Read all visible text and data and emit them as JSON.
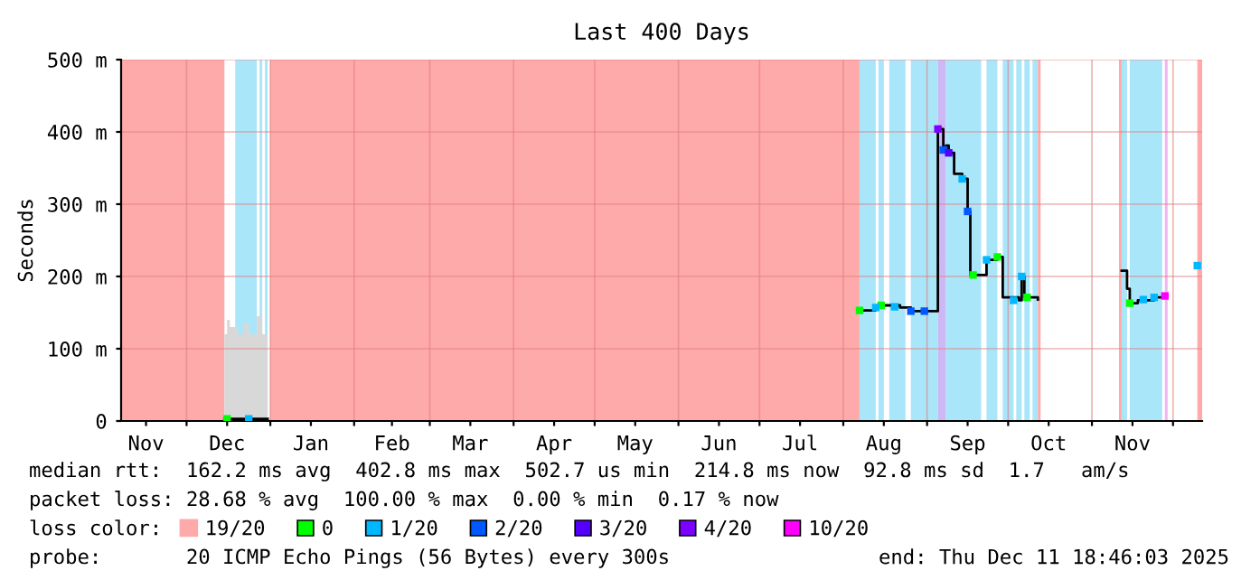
{
  "chart_data": {
    "type": "line",
    "title": "Last 400 Days",
    "ylabel": "Seconds",
    "xlim": [
      "2024-11-06T18:46",
      "2025-12-11T18:46"
    ],
    "xticks": [
      {
        "value": "2024-11-16",
        "label": "Nov"
      },
      {
        "value": "2024-12-01",
        "label": null
      },
      {
        "value": "2024-12-16",
        "label": "Dec"
      },
      {
        "value": "2025-01-01",
        "label": null
      },
      {
        "value": "2025-01-16",
        "label": "Jan"
      },
      {
        "value": "2025-02-01",
        "label": null
      },
      {
        "value": "2025-02-15",
        "label": "Feb"
      },
      {
        "value": "2025-03-01",
        "label": null
      },
      {
        "value": "2025-03-16",
        "label": "Mar"
      },
      {
        "value": "2025-04-01",
        "label": null
      },
      {
        "value": "2025-04-16",
        "label": "Apr"
      },
      {
        "value": "2025-05-01",
        "label": null
      },
      {
        "value": "2025-05-16",
        "label": "May"
      },
      {
        "value": "2025-06-01",
        "label": null
      },
      {
        "value": "2025-06-16",
        "label": "Jun"
      },
      {
        "value": "2025-07-01",
        "label": null
      },
      {
        "value": "2025-07-16",
        "label": "Jul"
      },
      {
        "value": "2025-08-01",
        "label": null
      },
      {
        "value": "2025-08-16",
        "label": "Aug"
      },
      {
        "value": "2025-09-01",
        "label": null
      },
      {
        "value": "2025-09-16",
        "label": "Sep"
      },
      {
        "value": "2025-10-01",
        "label": null
      },
      {
        "value": "2025-10-16",
        "label": "Oct"
      },
      {
        "value": "2025-11-01",
        "label": null
      },
      {
        "value": "2025-11-16",
        "label": "Nov"
      },
      {
        "value": "2025-12-01",
        "label": null
      }
    ],
    "ylim": [
      0,
      500
    ],
    "yticks": [
      0,
      {
        "value": 100,
        "label": "100 m"
      },
      {
        "value": 200,
        "label": "200 m"
      },
      {
        "value": 300,
        "label": "300 m"
      },
      {
        "value": 400,
        "label": "400 m"
      },
      {
        "value": 500,
        "label": "500 m"
      }
    ],
    "grid": true,
    "legend": "bottom",
    "legend_title": "loss color:",
    "bands": [
      {
        "axis": "x",
        "from": "2024-12-19",
        "to": "2024-12-27",
        "color": "#aae6fa"
      },
      {
        "axis": "x",
        "from": "2024-12-28",
        "to": "2024-12-29",
        "color": "#aae6fa"
      },
      {
        "axis": "x",
        "from": "2024-12-30",
        "to": "2024-12-31",
        "color": "#aae6fa"
      },
      {
        "axis": "x",
        "from": "2025-08-07",
        "to": "2025-08-13",
        "color": "#aae6fa"
      },
      {
        "axis": "x",
        "from": "2025-08-14",
        "to": "2025-08-16",
        "color": "#aae6fa"
      },
      {
        "axis": "x",
        "from": "2025-08-18",
        "to": "2025-08-24",
        "color": "#aae6fa"
      },
      {
        "axis": "x",
        "from": "2025-08-26",
        "to": "2025-09-05",
        "color": "#aae6fa"
      },
      {
        "axis": "x",
        "from": "2025-09-05",
        "to": "2025-09-08",
        "color": "#ccb8f5"
      },
      {
        "axis": "x",
        "from": "2025-09-08",
        "to": "2025-09-21",
        "color": "#aae6fa"
      },
      {
        "axis": "x",
        "from": "2025-09-23",
        "to": "2025-09-27",
        "color": "#aae6fa"
      },
      {
        "axis": "x",
        "from": "2025-09-29",
        "to": "2025-10-03",
        "color": "#aae6fa"
      },
      {
        "axis": "x",
        "from": "2025-10-04",
        "to": "2025-10-06",
        "color": "#aae6fa"
      },
      {
        "axis": "x",
        "from": "2025-10-07",
        "to": "2025-10-09",
        "color": "#aae6fa"
      },
      {
        "axis": "x",
        "from": "2025-10-10",
        "to": "2025-10-12",
        "color": "#aae6fa"
      },
      {
        "axis": "x",
        "from": "2025-11-12",
        "to": "2025-11-14",
        "color": "#aae6fa"
      },
      {
        "axis": "x",
        "from": "2025-11-15",
        "to": "2025-11-27",
        "color": "#aae6fa"
      },
      {
        "axis": "x",
        "from": "2025-11-28",
        "to": "2025-11-29",
        "color": "#f0b4f0"
      }
    ],
    "series": [
      {
        "type": "area",
        "name": "19/20",
        "color": "#ffaaaa",
        "x": [
          "2024-11-06T18:46",
          "2024-12-15",
          "2024-12-20",
          "2025-01-01",
          "2025-08-07",
          "2025-09-01",
          "2025-10-12",
          "2025-10-13",
          "2025-10-20",
          "2025-11-11",
          "2025-11-12",
          "2025-11-20",
          "2025-12-10",
          "2025-12-11T18:46"
        ],
        "values": [
          500,
          500,
          null,
          500,
          500,
          null,
          500,
          500,
          null,
          500,
          500,
          null,
          500,
          500
        ]
      },
      {
        "type": "area",
        "color": "#d8d8d8",
        "x": [
          "2024-12-15",
          "2024-12-16",
          "2024-12-17",
          "2024-12-20",
          "2024-12-22",
          "2024-12-24",
          "2024-12-27",
          "2024-12-29",
          "2024-12-31"
        ],
        "values": [
          120,
          140,
          130,
          120,
          135,
          120,
          145,
          120,
          150
        ]
      },
      {
        "color": "#000000",
        "x": [
          "2024-12-15",
          "2024-12-31",
          "2025-03-01",
          "2025-08-07",
          "2025-08-13",
          "2025-08-15",
          "2025-08-22",
          "2025-08-26",
          "2025-09-04",
          "2025-09-05",
          "2025-09-07",
          "2025-09-08",
          "2025-09-09",
          "2025-09-11",
          "2025-09-14",
          "2025-09-16",
          "2025-09-17",
          "2025-09-21",
          "2025-09-23",
          "2025-09-27",
          "2025-09-29",
          "2025-10-05",
          "2025-10-06",
          "2025-10-07",
          "2025-10-12",
          "2025-10-25",
          "2025-11-12",
          "2025-11-14",
          "2025-11-15",
          "2025-11-18",
          "2025-11-24",
          "2025-11-28"
        ],
        "values": [
          3,
          3,
          null,
          153,
          157,
          160,
          157,
          152,
          152,
          404,
          375,
          381,
          371,
          342,
          335,
          290,
          202,
          202,
          223,
          227,
          171,
          167,
          200,
          171,
          168,
          null,
          208,
          183,
          163,
          167,
          171,
          173
        ]
      },
      {
        "type": "scatter",
        "marker": "square",
        "name": "0",
        "color": "#00ff00",
        "x": [
          "2024-12-16",
          "2025-08-07",
          "2025-08-15",
          "2025-09-18",
          "2025-09-27",
          "2025-10-08",
          "2025-11-15"
        ],
        "values": [
          3,
          153,
          160,
          202,
          227,
          171,
          163
        ]
      },
      {
        "type": "scatter",
        "marker": "square",
        "name": "1/20",
        "color": "#00b8ff",
        "x": [
          "2024-12-24",
          "2025-08-13",
          "2025-08-20",
          "2025-09-14",
          "2025-09-23",
          "2025-10-03",
          "2025-10-06",
          "2025-11-20",
          "2025-11-24",
          "2025-12-10"
        ],
        "values": [
          3,
          157,
          158,
          335,
          223,
          167,
          200,
          168,
          171,
          215
        ]
      },
      {
        "type": "scatter",
        "marker": "square",
        "name": "2/20",
        "color": "#0059ff",
        "x": [
          "2025-08-26",
          "2025-08-31",
          "2025-09-07",
          "2025-09-16"
        ],
        "values": [
          152,
          152,
          375,
          290
        ]
      },
      {
        "type": "scatter",
        "marker": "square",
        "name": "3/20",
        "color": "#5500ff",
        "x": [
          "2025-09-09"
        ],
        "values": [
          371
        ]
      },
      {
        "type": "scatter",
        "marker": "square",
        "name": "4/20",
        "color": "#7e00ff",
        "x": [
          "2025-09-05"
        ],
        "values": [
          404
        ]
      },
      {
        "type": "scatter",
        "marker": "square",
        "name": "10/20",
        "color": "#ff00ff",
        "x": [
          "2025-11-28"
        ],
        "values": [
          173
        ]
      }
    ],
    "annotations": [
      "median rtt:  162.2 ms avg  402.8 ms max  502.7 us min  214.8 ms now  92.8 ms sd  1.7   am/s",
      "packet loss: 28.68 % avg  100.00 % max  0.00 % min  0.17 % now",
      "probe:       20 ICMP Echo Pings (56 Bytes) every 300s",
      "end: Thu Dec 11 18:46:03 2025"
    ]
  }
}
